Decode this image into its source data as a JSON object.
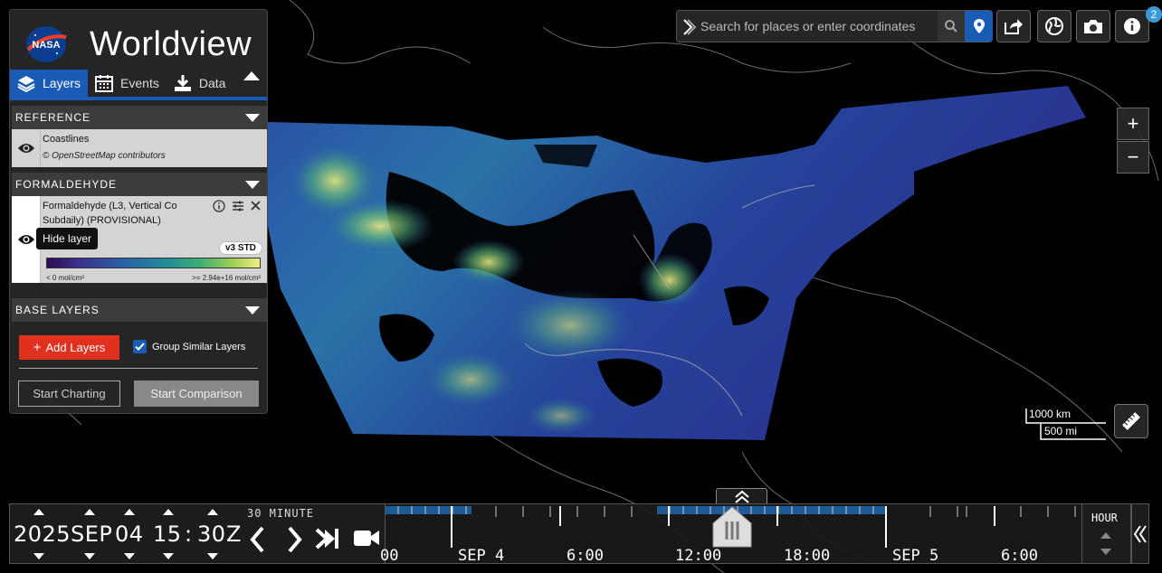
{
  "app": {
    "title": "Worldview"
  },
  "sidebar": {
    "tabs": [
      {
        "label": "Layers",
        "icon": "layers-icon",
        "active": true
      },
      {
        "label": "Events",
        "icon": "calendar-icon",
        "active": false
      },
      {
        "label": "Data",
        "icon": "download-icon",
        "active": false
      }
    ],
    "categories": {
      "reference": "REFERENCE",
      "formaldehyde": "FORMALDEHYDE",
      "base": "BASE LAYERS"
    },
    "layers": {
      "coastlines": {
        "name": "Coastlines",
        "attribution": "© OpenStreetMap contributors"
      },
      "formaldehyde": {
        "name_line1": "Formaldehyde (L3, Vertical Co",
        "name_line2": "Subdaily) (PROVISIONAL)",
        "badge": "v3 STD",
        "tooltip": "Hide layer",
        "legend_min": "< 0 mol/cm²",
        "legend_max": ">= 2.94e+16 mol/cm²"
      }
    },
    "add_layers_label": "Add Layers",
    "group_similar_label": "Group Similar Layers",
    "group_similar_checked": true,
    "start_charting_label": "Start Charting",
    "start_comparison_label": "Start Comparison"
  },
  "search": {
    "placeholder": "Search for places or enter coordinates"
  },
  "notifications": {
    "count": "2"
  },
  "scale_bar": {
    "km": "1000 km",
    "mi": "500 mi"
  },
  "timeline": {
    "year": "2025",
    "month": "SEP",
    "day": "04",
    "hour": "15",
    "minute": "30",
    "zone": "Z",
    "interval": "30 MINUTE",
    "zoom_level": "HOUR",
    "axis_labels": [
      "00",
      "SEP 4",
      "6:00",
      "12:00",
      "18:00",
      "SEP 5",
      "6:00"
    ]
  },
  "colors": {
    "accent": "#1a5bb5",
    "add_button": "#e0301e"
  }
}
